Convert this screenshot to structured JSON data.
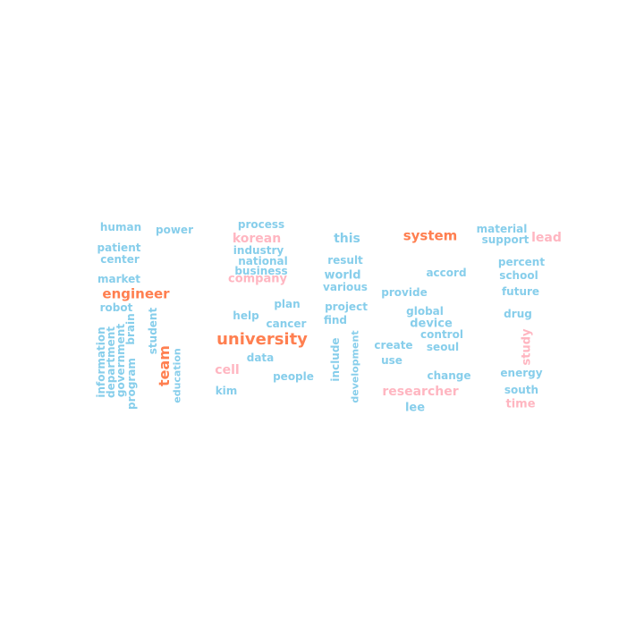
{
  "colors": {
    "blue": "#87ceeb",
    "pink": "#ffb6c1",
    "orange": "#ff7f50",
    "background": "#ffffff"
  },
  "words": [
    {
      "text": "human",
      "color": "blue",
      "size": 12,
      "vertical": false
    },
    {
      "text": "power",
      "color": "blue",
      "size": 12,
      "vertical": false
    },
    {
      "text": "process",
      "color": "blue",
      "size": 12,
      "vertical": false
    },
    {
      "text": "korean",
      "color": "pink",
      "size": 14,
      "vertical": false
    },
    {
      "text": "industry",
      "color": "blue",
      "size": 12,
      "vertical": false
    },
    {
      "text": "national",
      "color": "blue",
      "size": 12,
      "vertical": false
    },
    {
      "text": "business",
      "color": "blue",
      "size": 12,
      "vertical": false
    },
    {
      "text": "company",
      "color": "pink",
      "size": 13,
      "vertical": false
    },
    {
      "text": "this",
      "color": "blue",
      "size": 14,
      "vertical": false
    },
    {
      "text": "system",
      "color": "orange",
      "size": 15,
      "vertical": false
    },
    {
      "text": "material",
      "color": "blue",
      "size": 12,
      "vertical": false
    },
    {
      "text": "support",
      "color": "blue",
      "size": 12,
      "vertical": false
    },
    {
      "text": "lead",
      "color": "pink",
      "size": 14,
      "vertical": false
    },
    {
      "text": "patient",
      "color": "blue",
      "size": 12,
      "vertical": false
    },
    {
      "text": "center",
      "color": "blue",
      "size": 12,
      "vertical": false
    },
    {
      "text": "result",
      "color": "blue",
      "size": 12,
      "vertical": false
    },
    {
      "text": "world",
      "color": "blue",
      "size": 13,
      "vertical": false
    },
    {
      "text": "various",
      "color": "blue",
      "size": 12,
      "vertical": false
    },
    {
      "text": "accord",
      "color": "blue",
      "size": 12,
      "vertical": false
    },
    {
      "text": "percent",
      "color": "blue",
      "size": 12,
      "vertical": false
    },
    {
      "text": "school",
      "color": "blue",
      "size": 12,
      "vertical": false
    },
    {
      "text": "market",
      "color": "blue",
      "size": 12,
      "vertical": false
    },
    {
      "text": "engineer",
      "color": "orange",
      "size": 15,
      "vertical": false
    },
    {
      "text": "provide",
      "color": "blue",
      "size": 12,
      "vertical": false
    },
    {
      "text": "future",
      "color": "blue",
      "size": 12,
      "vertical": false
    },
    {
      "text": "plan",
      "color": "blue",
      "size": 12,
      "vertical": false
    },
    {
      "text": "project",
      "color": "blue",
      "size": 12,
      "vertical": false
    },
    {
      "text": "robot",
      "color": "blue",
      "size": 12,
      "vertical": false
    },
    {
      "text": "help",
      "color": "blue",
      "size": 12,
      "vertical": false
    },
    {
      "text": "global",
      "color": "blue",
      "size": 12,
      "vertical": false
    },
    {
      "text": "drug",
      "color": "blue",
      "size": 12,
      "vertical": false
    },
    {
      "text": "cancer",
      "color": "blue",
      "size": 12,
      "vertical": false
    },
    {
      "text": "find",
      "color": "blue",
      "size": 12,
      "vertical": false
    },
    {
      "text": "device",
      "color": "blue",
      "size": 13,
      "vertical": false
    },
    {
      "text": "control",
      "color": "blue",
      "size": 12,
      "vertical": false
    },
    {
      "text": "university",
      "color": "orange",
      "size": 18,
      "vertical": false
    },
    {
      "text": "create",
      "color": "blue",
      "size": 12,
      "vertical": false
    },
    {
      "text": "seoul",
      "color": "blue",
      "size": 12,
      "vertical": false
    },
    {
      "text": "data",
      "color": "blue",
      "size": 12,
      "vertical": false
    },
    {
      "text": "use",
      "color": "blue",
      "size": 12,
      "vertical": false
    },
    {
      "text": "cell",
      "color": "pink",
      "size": 14,
      "vertical": false
    },
    {
      "text": "people",
      "color": "blue",
      "size": 12,
      "vertical": false
    },
    {
      "text": "change",
      "color": "blue",
      "size": 12,
      "vertical": false
    },
    {
      "text": "energy",
      "color": "blue",
      "size": 12,
      "vertical": false
    },
    {
      "text": "kim",
      "color": "blue",
      "size": 12,
      "vertical": false
    },
    {
      "text": "researcher",
      "color": "pink",
      "size": 14,
      "vertical": false
    },
    {
      "text": "south",
      "color": "blue",
      "size": 12,
      "vertical": false
    },
    {
      "text": "lee",
      "color": "blue",
      "size": 13,
      "vertical": false
    },
    {
      "text": "time",
      "color": "pink",
      "size": 13,
      "vertical": false
    },
    {
      "text": "brain",
      "color": "blue",
      "size": 12,
      "vertical": true
    },
    {
      "text": "student",
      "color": "blue",
      "size": 12,
      "vertical": true
    },
    {
      "text": "information",
      "color": "blue",
      "size": 12,
      "vertical": true
    },
    {
      "text": "department",
      "color": "blue",
      "size": 12,
      "vertical": true
    },
    {
      "text": "government",
      "color": "blue",
      "size": 12,
      "vertical": true
    },
    {
      "text": "program",
      "color": "blue",
      "size": 12,
      "vertical": true
    },
    {
      "text": "team",
      "color": "orange",
      "size": 16,
      "vertical": true
    },
    {
      "text": "education",
      "color": "blue",
      "size": 11,
      "vertical": true
    },
    {
      "text": "include",
      "color": "blue",
      "size": 12,
      "vertical": true
    },
    {
      "text": "development",
      "color": "blue",
      "size": 11,
      "vertical": true
    },
    {
      "text": "study",
      "color": "pink",
      "size": 13,
      "vertical": true
    }
  ]
}
